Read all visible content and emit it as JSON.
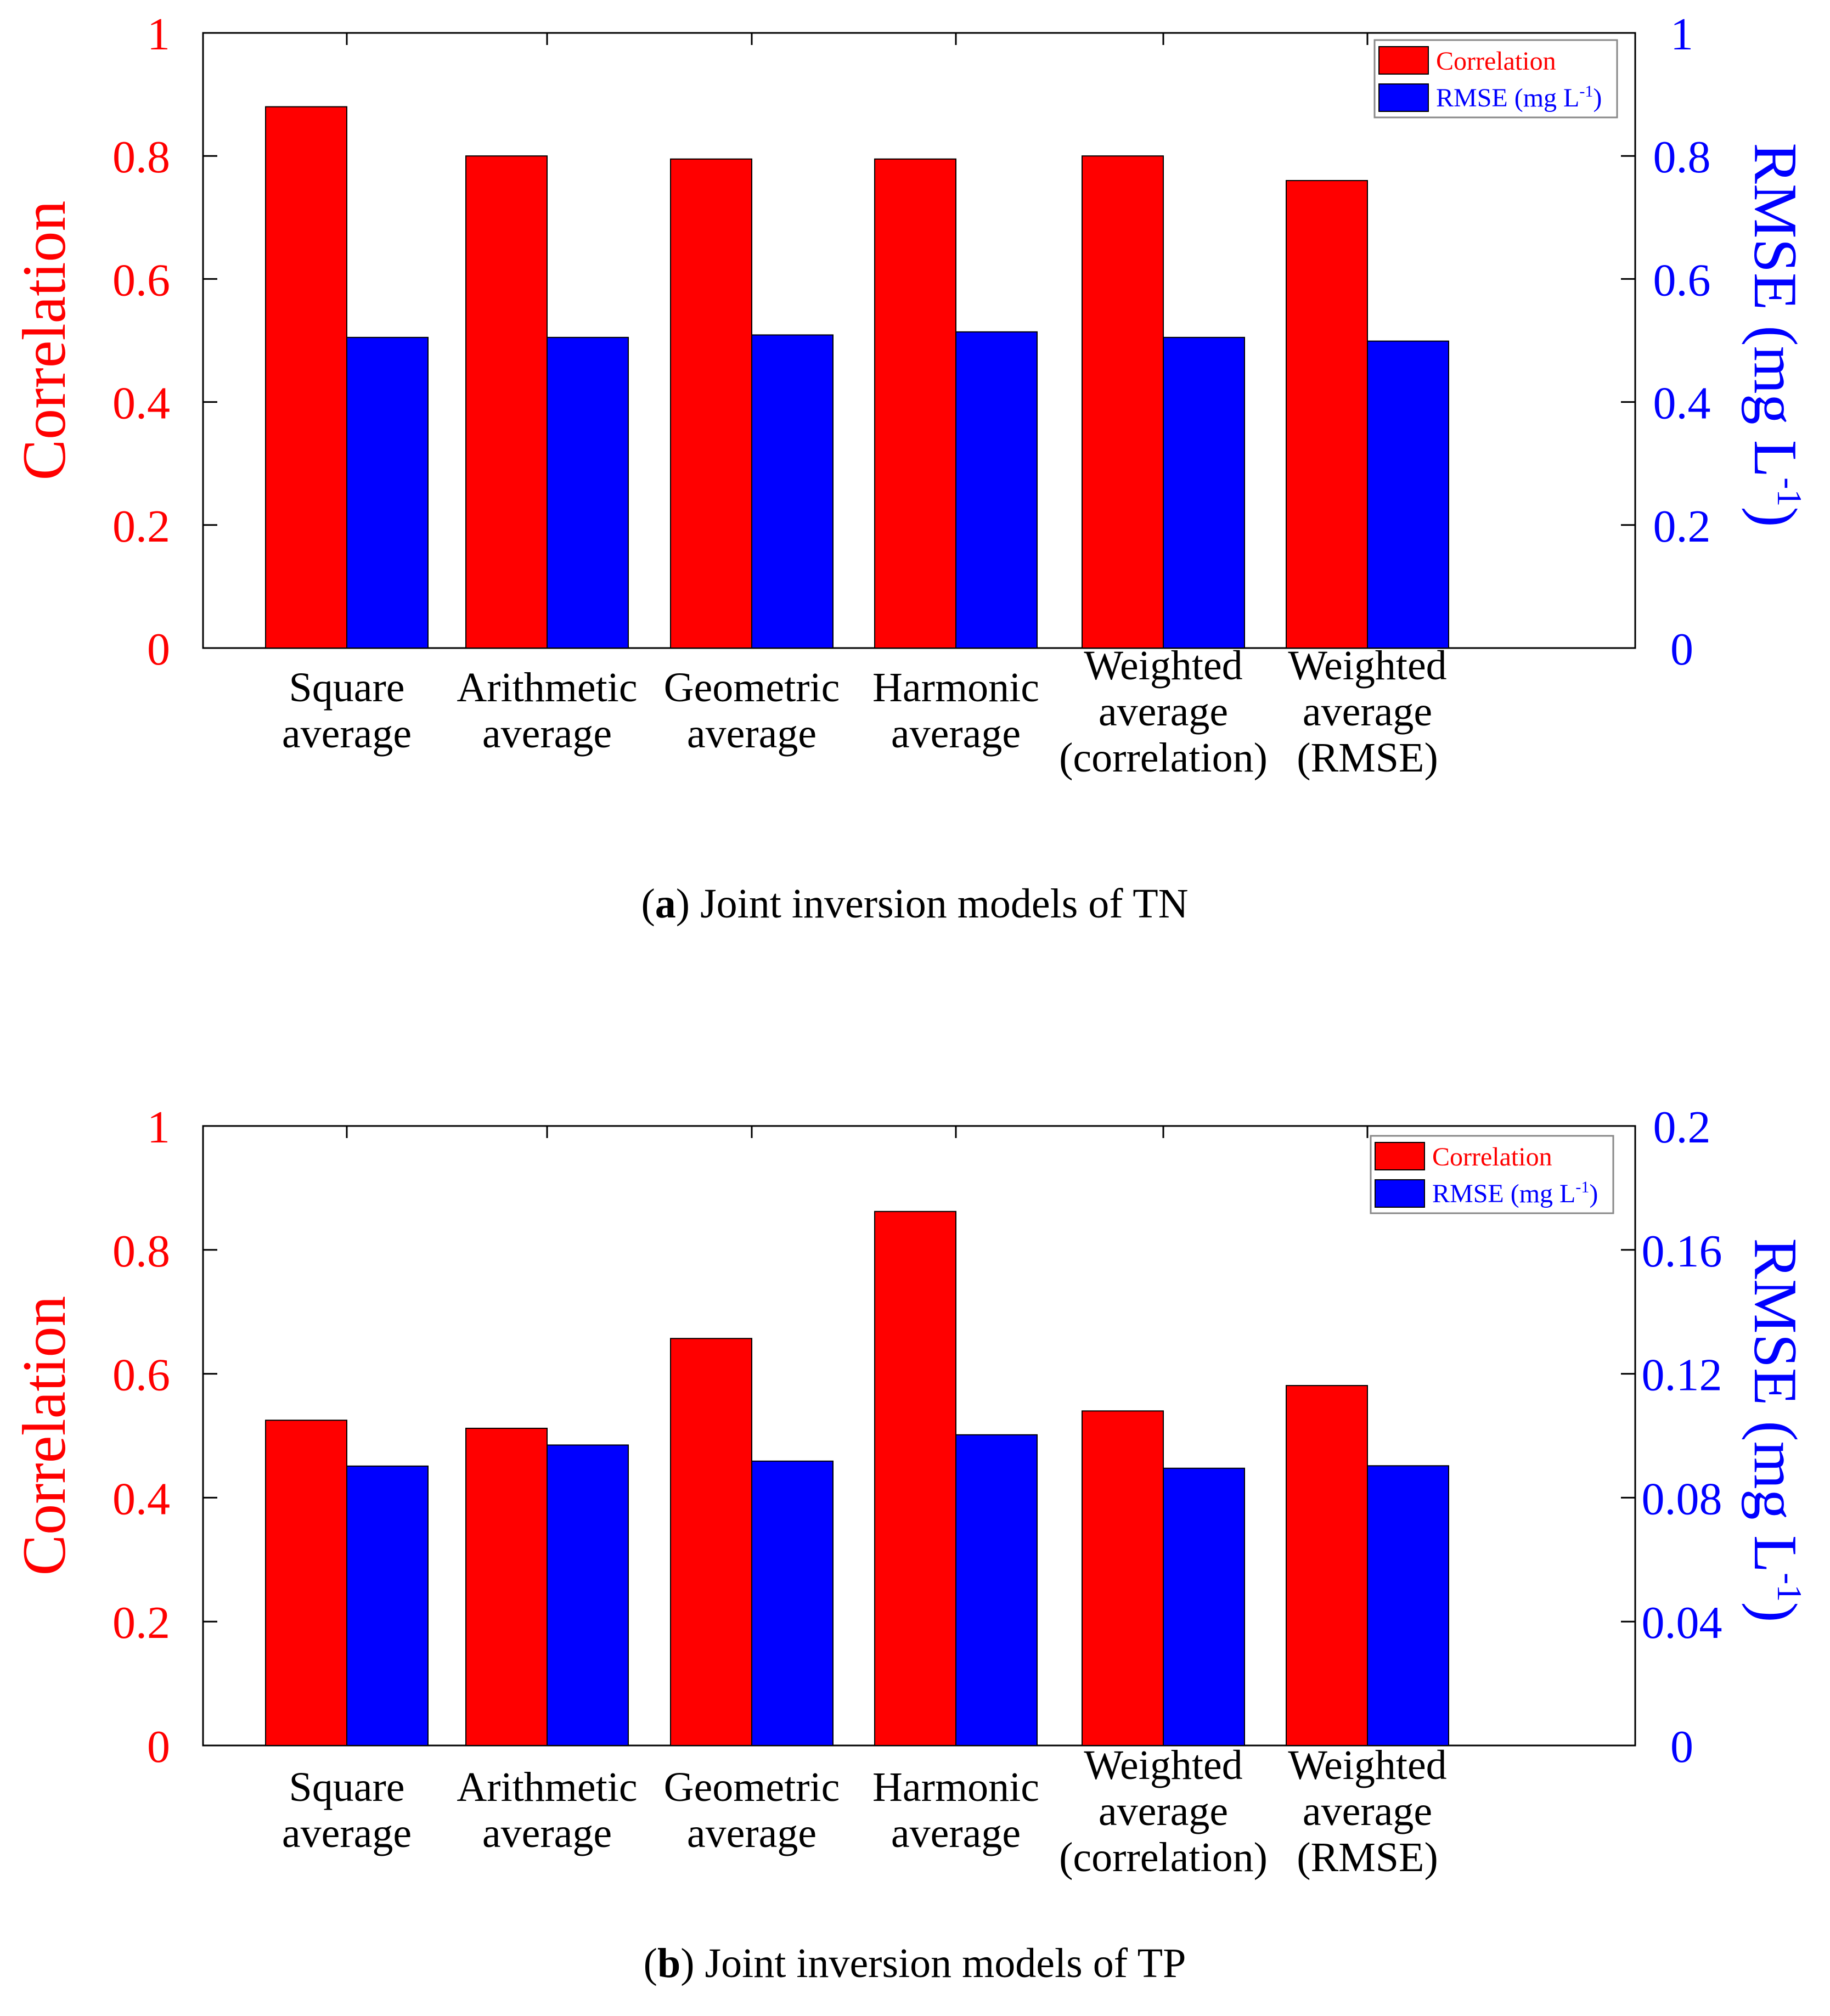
{
  "colors": {
    "correlation": "#ff0000",
    "rmse": "#0000ff"
  },
  "chart_data": [
    {
      "type": "bar",
      "caption_letter": "a",
      "caption_rest": ") Joint inversion models of TN",
      "categories": [
        [
          "Square",
          "average"
        ],
        [
          "Arithmetic",
          "average"
        ],
        [
          "Geometric",
          "average"
        ],
        [
          "Harmonic",
          "average"
        ],
        [
          "Weighted",
          "average",
          "(correlation)"
        ],
        [
          "Weighted",
          "average",
          "(RMSE)"
        ]
      ],
      "ylabel_left": "Correlation",
      "ylabel_right": "RMSE (mg L",
      "ylabel_right_sup": "-1",
      "ylabel_right_end": ")",
      "ylim_left": [
        0,
        1
      ],
      "ylim_right": [
        0,
        1
      ],
      "yticks_left": [
        "0",
        "0.2",
        "0.4",
        "0.6",
        "0.8",
        "1"
      ],
      "yticks_right": [
        "0",
        "0.2",
        "0.4",
        "0.6",
        "0.8",
        "1"
      ],
      "legend": {
        "correlation": "Correlation",
        "rmse": "RMSE (mg L",
        "rmse_sup": "-1",
        "rmse_end": ")"
      },
      "series": [
        {
          "name": "Correlation",
          "axis": "left",
          "values": [
            0.88,
            0.8,
            0.795,
            0.795,
            0.8,
            0.76
          ]
        },
        {
          "name": "RMSE (mg L-1)",
          "axis": "right",
          "values": [
            0.505,
            0.505,
            0.509,
            0.514,
            0.505,
            0.499
          ]
        }
      ]
    },
    {
      "type": "bar",
      "caption_letter": "b",
      "caption_rest": ") Joint inversion models of TP",
      "categories": [
        [
          "Square",
          "average"
        ],
        [
          "Arithmetic",
          "average"
        ],
        [
          "Geometric",
          "average"
        ],
        [
          "Harmonic",
          "average"
        ],
        [
          "Weighted",
          "average",
          "(correlation)"
        ],
        [
          "Weighted",
          "average",
          "(RMSE)"
        ]
      ],
      "ylabel_left": "Correlation",
      "ylabel_right": "RMSE (mg L",
      "ylabel_right_sup": "-1",
      "ylabel_right_end": ")",
      "ylim_left": [
        0,
        1
      ],
      "ylim_right": [
        0,
        0.2
      ],
      "yticks_left": [
        "0",
        "0.2",
        "0.4",
        "0.6",
        "0.8",
        "1"
      ],
      "yticks_right": [
        "0",
        "0.04",
        "0.08",
        "0.12",
        "0.16",
        "0.2"
      ],
      "legend": {
        "correlation": "Correlation",
        "rmse": "RMSE (mg L",
        "rmse_sup": "-1",
        "rmse_end": ")"
      },
      "series": [
        {
          "name": "Correlation",
          "axis": "left",
          "values": [
            0.525,
            0.512,
            0.657,
            0.862,
            0.54,
            0.581
          ]
        },
        {
          "name": "RMSE (mg L-1)",
          "axis": "right",
          "values": [
            0.0902,
            0.097,
            0.0918,
            0.1003,
            0.0895,
            0.0903
          ]
        }
      ]
    }
  ]
}
